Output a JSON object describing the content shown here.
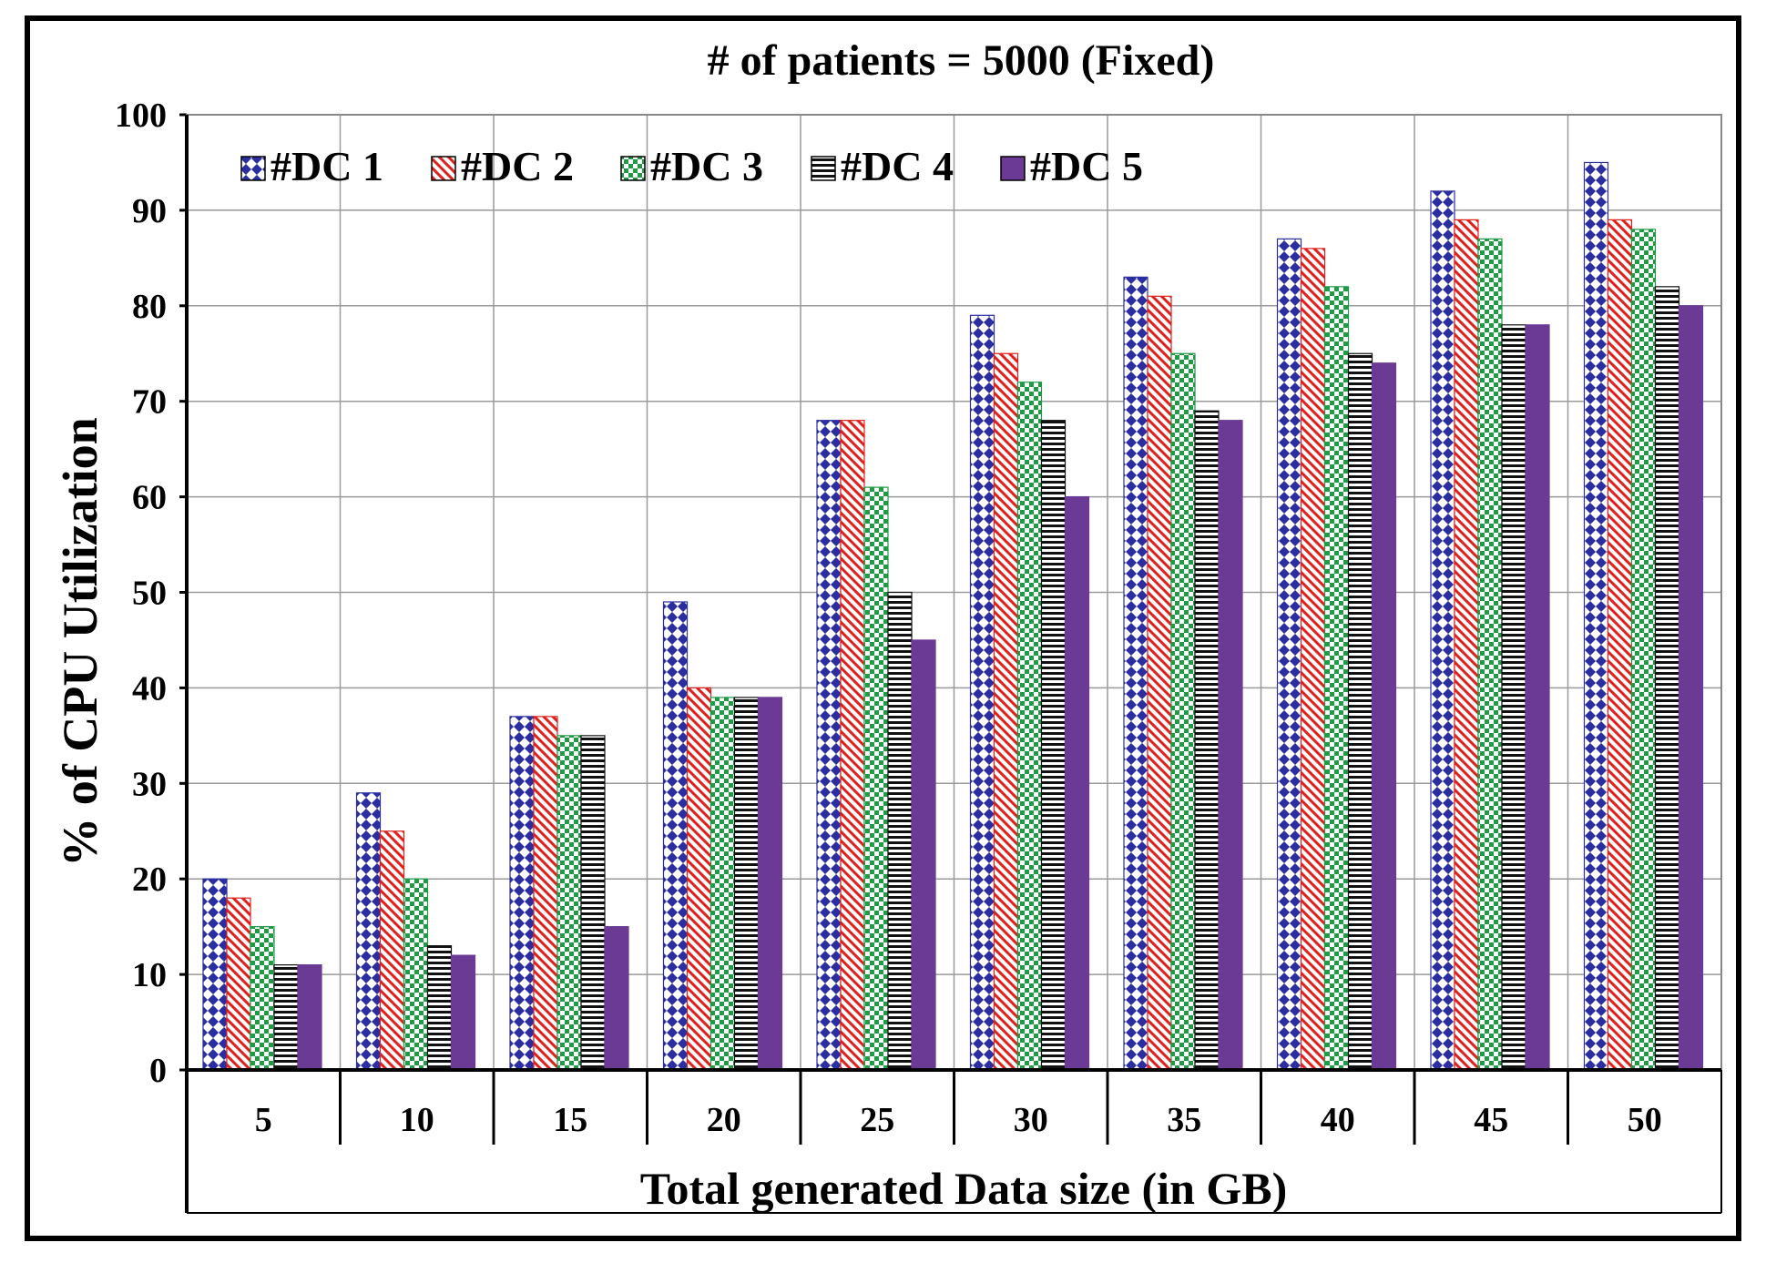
{
  "chart_data": {
    "type": "bar",
    "title": "# of patients = 5000 (Fixed)",
    "xlabel": "Total generated Data size (in GB)",
    "ylabel": "% of CPU Utilization",
    "ylim": [
      0,
      100
    ],
    "yticks": [
      0,
      10,
      20,
      30,
      40,
      50,
      60,
      70,
      80,
      90,
      100
    ],
    "grid": true,
    "legend_position": "top-left",
    "categories": [
      "5",
      "10",
      "15",
      "20",
      "25",
      "30",
      "35",
      "40",
      "45",
      "50"
    ],
    "series": [
      {
        "name": "#DC 1",
        "color": "#2b2ea0",
        "pattern": "diamond",
        "values": [
          20,
          29,
          37,
          49,
          68,
          79,
          83,
          87,
          92,
          95
        ]
      },
      {
        "name": "#DC 2",
        "color": "#e0201c",
        "pattern": "diagonal",
        "values": [
          18,
          25,
          37,
          40,
          68,
          75,
          81,
          86,
          89,
          89
        ]
      },
      {
        "name": "#DC 3",
        "color": "#1f9a45",
        "pattern": "checker",
        "values": [
          15,
          20,
          35,
          39,
          61,
          72,
          75,
          82,
          87,
          88
        ]
      },
      {
        "name": "#DC 4",
        "color": "#111111",
        "pattern": "horizontal",
        "values": [
          11,
          13,
          35,
          39,
          50,
          68,
          69,
          75,
          78,
          82
        ]
      },
      {
        "name": "#DC 5",
        "color": "#6b3a94",
        "pattern": "solid",
        "values": [
          11,
          12,
          15,
          39,
          45,
          60,
          68,
          74,
          78,
          80
        ]
      }
    ]
  }
}
